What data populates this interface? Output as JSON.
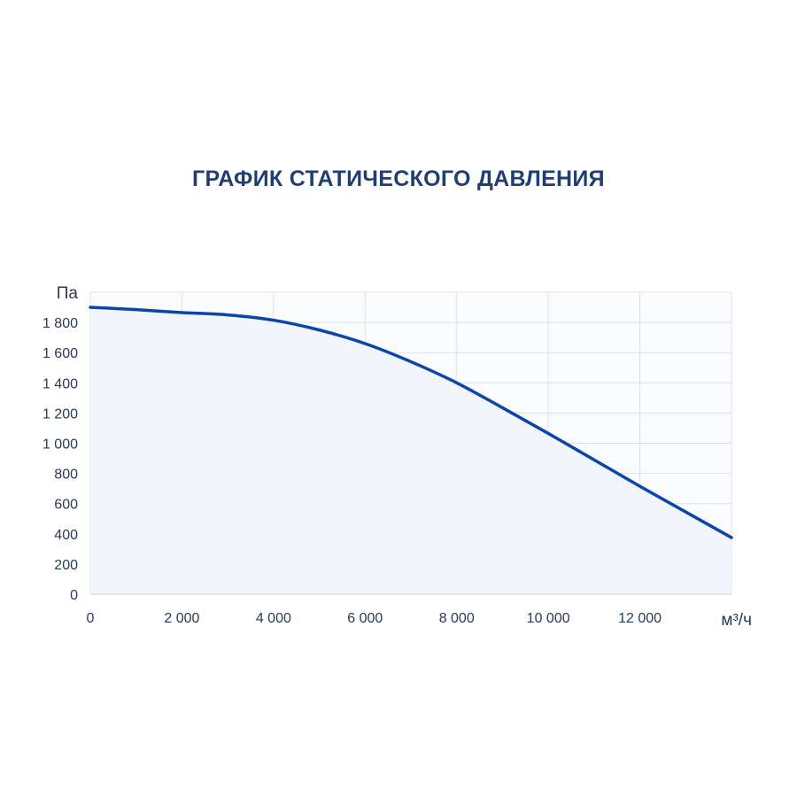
{
  "chart_data": {
    "type": "area",
    "title": "ГРАФИК СТАТИЧЕСКОГО ДАВЛЕНИЯ",
    "xlabel": "м³/ч",
    "ylabel": "Па",
    "xlim": [
      0,
      14000
    ],
    "ylim": [
      0,
      2000
    ],
    "x_ticks": [
      0,
      2000,
      4000,
      6000,
      8000,
      10000,
      12000
    ],
    "x_tick_labels": [
      "0",
      "2 000",
      "4 000",
      "6 000",
      "8 000",
      "10 000",
      "12 000"
    ],
    "y_ticks": [
      0,
      200,
      400,
      600,
      800,
      1000,
      1200,
      1400,
      1600,
      1800
    ],
    "y_tick_labels": [
      "0",
      "200",
      "400",
      "600",
      "800",
      "1 000",
      "1 200",
      "1 400",
      "1 600",
      "1 800"
    ],
    "grid": true,
    "series": [
      {
        "x": [
          0,
          1000,
          2000,
          3000,
          4000,
          5000,
          6000,
          7000,
          8000,
          9000,
          10000,
          11000,
          12000,
          13000,
          14000
        ],
        "values": [
          1900,
          1885,
          1865,
          1850,
          1815,
          1750,
          1660,
          1540,
          1400,
          1235,
          1065,
          890,
          715,
          545,
          375
        ]
      }
    ],
    "colors": {
      "line": "#0b46a6",
      "fill": "#f2f6fc",
      "grid": "#dde1e7",
      "axis": "#c9ced6"
    }
  }
}
